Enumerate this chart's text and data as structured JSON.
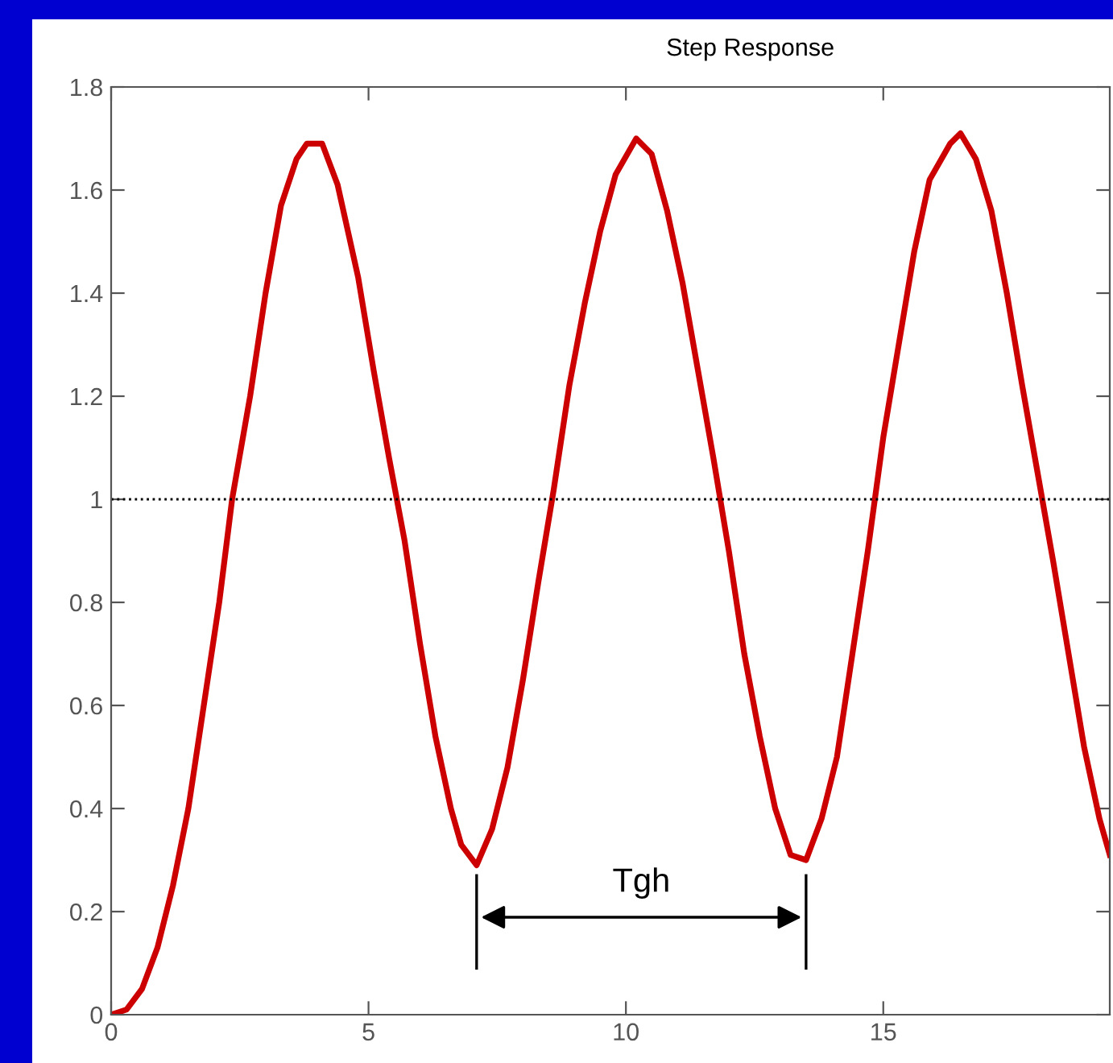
{
  "chart_data": {
    "type": "line",
    "title": "Step Response",
    "x": [
      0,
      0.3,
      0.6,
      0.9,
      1.2,
      1.5,
      1.8,
      2.1,
      2.35,
      2.7,
      3.0,
      3.3,
      3.6,
      3.8,
      4.1,
      4.4,
      4.8,
      5.1,
      5.4,
      5.7,
      6.0,
      6.3,
      6.6,
      6.8,
      7.1,
      7.4,
      7.7,
      8.0,
      8.3,
      8.6,
      8.9,
      9.2,
      9.5,
      9.8,
      10.2,
      10.5,
      10.8,
      11.1,
      11.4,
      11.7,
      12.0,
      12.3,
      12.6,
      12.9,
      13.2,
      13.5,
      13.8,
      14.1,
      14.4,
      14.7,
      15.0,
      15.3,
      15.6,
      15.9,
      16.3,
      16.5,
      16.8,
      17.1,
      17.4,
      17.7,
      18.0,
      18.3,
      18.6,
      18.9,
      19.2,
      19.4
    ],
    "series": [
      {
        "color": "#cc0000",
        "values": [
          0,
          0.01,
          0.05,
          0.13,
          0.25,
          0.4,
          0.6,
          0.8,
          1.0,
          1.2,
          1.4,
          1.57,
          1.66,
          1.69,
          1.69,
          1.61,
          1.43,
          1.25,
          1.08,
          0.92,
          0.72,
          0.54,
          0.4,
          0.33,
          0.29,
          0.36,
          0.48,
          0.65,
          0.84,
          1.02,
          1.22,
          1.38,
          1.52,
          1.63,
          1.7,
          1.67,
          1.56,
          1.42,
          1.25,
          1.08,
          0.9,
          0.7,
          0.54,
          0.4,
          0.31,
          0.3,
          0.38,
          0.5,
          0.7,
          0.9,
          1.12,
          1.3,
          1.48,
          1.62,
          1.69,
          1.71,
          1.66,
          1.56,
          1.4,
          1.22,
          1.05,
          0.88,
          0.7,
          0.52,
          0.38,
          0.31
        ]
      }
    ],
    "xlim": [
      0,
      19.4
    ],
    "ylim": [
      0,
      1.8
    ],
    "xticks": [
      0,
      5,
      10,
      15
    ],
    "yticks": [
      0,
      0.2,
      0.4,
      0.6,
      0.8,
      1,
      1.2,
      1.4,
      1.6,
      1.8
    ],
    "ref_lines": [
      {
        "axis": "y",
        "value": 1,
        "color": "#000000",
        "line_style": "dotted"
      }
    ],
    "annotations": [
      "Tgh"
    ],
    "grid": false,
    "marker": "none",
    "line_style": "solid"
  }
}
